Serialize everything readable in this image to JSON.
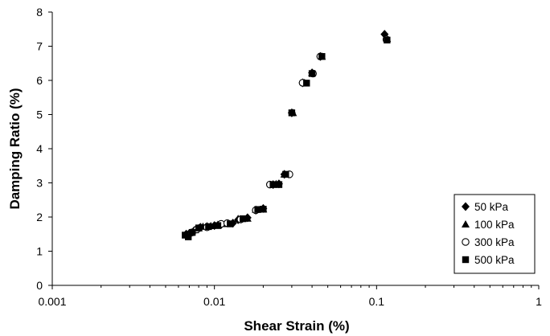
{
  "chart_data": {
    "type": "scatter",
    "xlabel": "Shear Strain (%)",
    "ylabel": "Damping Ratio (%)",
    "xscale": "log",
    "xlim": [
      0.001,
      1
    ],
    "ylim": [
      0,
      8
    ],
    "x_ticks": [
      "0.001",
      "0.01",
      "0.1",
      "1"
    ],
    "y_ticks": [
      "0",
      "1",
      "2",
      "3",
      "4",
      "5",
      "6",
      "7",
      "8"
    ],
    "grid": false,
    "legend_position": "bottom-right",
    "series": [
      {
        "name": "50 kPa",
        "marker": "diamond",
        "color": "#000000",
        "points": [
          [
            0.0067,
            1.5
          ],
          [
            0.007,
            1.52
          ],
          [
            0.0075,
            1.6
          ],
          [
            0.0078,
            1.65
          ],
          [
            0.0082,
            1.7
          ],
          [
            0.009,
            1.72
          ],
          [
            0.01,
            1.75
          ],
          [
            0.011,
            1.78
          ],
          [
            0.013,
            1.82
          ],
          [
            0.014,
            1.92
          ],
          [
            0.016,
            1.98
          ],
          [
            0.018,
            2.2
          ],
          [
            0.02,
            2.25
          ],
          [
            0.023,
            2.95
          ],
          [
            0.025,
            2.97
          ],
          [
            0.027,
            3.25
          ],
          [
            0.03,
            5.05
          ],
          [
            0.035,
            5.93
          ],
          [
            0.04,
            6.22
          ],
          [
            0.045,
            6.7
          ],
          [
            0.112,
            7.35
          ]
        ]
      },
      {
        "name": "100 kPa",
        "marker": "triangle",
        "color": "#000000",
        "points": [
          [
            0.0068,
            1.48
          ],
          [
            0.0072,
            1.55
          ],
          [
            0.0076,
            1.62
          ],
          [
            0.008,
            1.68
          ],
          [
            0.0085,
            1.72
          ],
          [
            0.0095,
            1.74
          ],
          [
            0.0105,
            1.78
          ],
          [
            0.012,
            1.8
          ],
          [
            0.014,
            1.95
          ],
          [
            0.016,
            1.96
          ],
          [
            0.018,
            2.22
          ],
          [
            0.02,
            2.23
          ],
          [
            0.024,
            2.97
          ],
          [
            0.027,
            3.25
          ],
          [
            0.0305,
            5.05
          ],
          [
            0.036,
            5.93
          ],
          [
            0.04,
            6.22
          ],
          [
            0.046,
            6.7
          ],
          [
            0.116,
            7.22
          ]
        ]
      },
      {
        "name": "300 kPa",
        "marker": "circle",
        "color": "#000000",
        "points": [
          [
            0.0069,
            1.47
          ],
          [
            0.0073,
            1.55
          ],
          [
            0.0078,
            1.64
          ],
          [
            0.009,
            1.7
          ],
          [
            0.011,
            1.8
          ],
          [
            0.012,
            1.82
          ],
          [
            0.0145,
            1.93
          ],
          [
            0.018,
            2.2
          ],
          [
            0.022,
            2.95
          ],
          [
            0.029,
            3.25
          ],
          [
            0.035,
            5.93
          ],
          [
            0.0405,
            6.2
          ],
          [
            0.045,
            6.7
          ],
          [
            0.115,
            7.2
          ]
        ]
      },
      {
        "name": "500 kPa",
        "marker": "square",
        "color": "#000000",
        "points": [
          [
            0.0066,
            1.47
          ],
          [
            0.0069,
            1.42
          ],
          [
            0.0073,
            1.55
          ],
          [
            0.008,
            1.68
          ],
          [
            0.0092,
            1.72
          ],
          [
            0.0105,
            1.75
          ],
          [
            0.0125,
            1.8
          ],
          [
            0.015,
            1.95
          ],
          [
            0.0185,
            2.22
          ],
          [
            0.02,
            2.23
          ],
          [
            0.023,
            2.95
          ],
          [
            0.025,
            2.95
          ],
          [
            0.0275,
            3.25
          ],
          [
            0.03,
            5.05
          ],
          [
            0.037,
            5.92
          ],
          [
            0.04,
            6.2
          ],
          [
            0.046,
            6.7
          ],
          [
            0.116,
            7.18
          ]
        ]
      }
    ]
  }
}
